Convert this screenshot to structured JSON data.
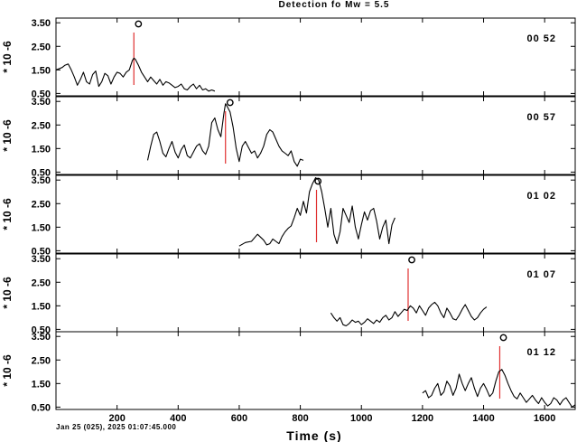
{
  "chart_data": {
    "type": "line",
    "title": "Detection fo Mw = 5.5",
    "xlabel": "Time (s)",
    "ylabel": "* 10 -6",
    "timestamp": "Jan 25 (025), 2025 01:07:45.000",
    "xlim": [
      0,
      1700
    ],
    "ylim": [
      0.4,
      3.7
    ],
    "xticks": [
      200,
      400,
      600,
      800,
      1000,
      1200,
      1400,
      1600
    ],
    "yticks": [
      "3.50",
      "2.50",
      "1.50",
      "0.50"
    ],
    "ytick_values": [
      3.5,
      2.5,
      1.5,
      0.5
    ],
    "colors": {
      "trace": "#000000",
      "detection_line": "#e03030",
      "frame": "#000000"
    },
    "panels": [
      {
        "label": "00 52",
        "detection_x": 255,
        "marker": {
          "x": 270,
          "y": 3.45
        },
        "series": {
          "x": [
            0,
            10,
            20,
            30,
            40,
            50,
            60,
            70,
            80,
            90,
            100,
            110,
            120,
            130,
            140,
            150,
            160,
            170,
            180,
            190,
            200,
            210,
            220,
            230,
            240,
            250,
            255,
            260,
            270,
            280,
            290,
            300,
            310,
            320,
            330,
            340,
            350,
            360,
            370,
            380,
            390,
            400,
            410,
            420,
            430,
            440,
            450,
            460,
            470,
            480,
            490,
            500,
            510,
            520
          ],
          "y": [
            1.5,
            1.55,
            1.6,
            1.7,
            1.75,
            1.5,
            1.2,
            0.85,
            1.1,
            1.4,
            1.0,
            0.9,
            1.3,
            1.45,
            0.8,
            1.0,
            1.35,
            1.25,
            0.9,
            1.2,
            1.4,
            1.35,
            1.2,
            1.4,
            1.5,
            1.9,
            2.0,
            1.95,
            1.7,
            1.4,
            1.2,
            1.0,
            1.2,
            1.05,
            0.9,
            1.1,
            0.85,
            1.0,
            0.95,
            0.85,
            0.75,
            0.8,
            0.9,
            0.7,
            0.65,
            0.8,
            0.9,
            0.7,
            0.85,
            0.65,
            0.7,
            0.6,
            0.65,
            0.6
          ]
        }
      },
      {
        "label": "00 57",
        "detection_x": 555,
        "marker": {
          "x": 570,
          "y": 3.45
        },
        "series": {
          "x": [
            300,
            310,
            320,
            330,
            340,
            350,
            360,
            370,
            380,
            390,
            400,
            410,
            420,
            430,
            440,
            450,
            460,
            470,
            480,
            490,
            500,
            510,
            520,
            530,
            540,
            550,
            555,
            560,
            570,
            580,
            590,
            600,
            610,
            620,
            630,
            640,
            650,
            660,
            670,
            680,
            690,
            700,
            710,
            720,
            730,
            740,
            750,
            760,
            770,
            780,
            790,
            800,
            810
          ],
          "y": [
            1.0,
            1.6,
            2.1,
            2.2,
            1.8,
            1.3,
            1.15,
            1.5,
            1.8,
            1.35,
            1.1,
            1.45,
            1.65,
            1.2,
            1.1,
            1.35,
            1.6,
            1.7,
            1.4,
            1.25,
            1.6,
            2.6,
            2.8,
            2.3,
            2.0,
            3.0,
            3.4,
            3.3,
            3.05,
            2.4,
            1.5,
            0.95,
            1.6,
            1.8,
            1.55,
            1.3,
            1.4,
            1.1,
            1.3,
            1.6,
            2.1,
            2.3,
            2.2,
            1.9,
            1.6,
            1.4,
            1.3,
            1.2,
            1.4,
            0.95,
            0.75,
            1.05,
            1.0
          ]
        }
      },
      {
        "label": "01 02",
        "detection_x": 853,
        "marker": {
          "x": 858,
          "y": 3.45
        },
        "series": {
          "x": [
            600,
            620,
            640,
            660,
            680,
            690,
            700,
            710,
            720,
            730,
            740,
            750,
            760,
            770,
            780,
            790,
            800,
            810,
            820,
            830,
            840,
            850,
            860,
            870,
            880,
            890,
            900,
            910,
            920,
            930,
            940,
            950,
            960,
            970,
            980,
            990,
            1000,
            1010,
            1020,
            1030,
            1040,
            1050,
            1060,
            1070,
            1080,
            1090,
            1100,
            1110
          ],
          "y": [
            0.7,
            0.85,
            0.9,
            1.2,
            0.95,
            0.75,
            0.8,
            1.0,
            0.9,
            0.8,
            1.1,
            1.3,
            1.45,
            1.55,
            1.9,
            2.3,
            2.0,
            2.6,
            2.1,
            3.0,
            3.35,
            3.6,
            3.5,
            3.0,
            2.3,
            1.5,
            2.3,
            1.2,
            0.8,
            1.3,
            2.3,
            2.0,
            1.7,
            2.4,
            1.5,
            1.0,
            1.6,
            2.15,
            1.8,
            2.2,
            2.3,
            1.75,
            1.0,
            1.5,
            1.8,
            0.8,
            1.6,
            1.9
          ]
        }
      },
      {
        "label": "01 07",
        "detection_x": 1153,
        "marker": {
          "x": 1165,
          "y": 3.45
        },
        "series": {
          "x": [
            900,
            910,
            920,
            930,
            940,
            950,
            960,
            970,
            980,
            990,
            1000,
            1010,
            1020,
            1030,
            1040,
            1050,
            1060,
            1070,
            1080,
            1090,
            1100,
            1110,
            1120,
            1130,
            1140,
            1150,
            1160,
            1170,
            1180,
            1190,
            1200,
            1210,
            1220,
            1230,
            1240,
            1250,
            1260,
            1270,
            1280,
            1290,
            1300,
            1310,
            1320,
            1330,
            1340,
            1350,
            1360,
            1370,
            1380,
            1390,
            1400,
            1410
          ],
          "y": [
            1.2,
            1.0,
            0.85,
            1.0,
            0.7,
            0.65,
            0.75,
            0.9,
            0.8,
            0.85,
            0.7,
            0.8,
            0.95,
            0.85,
            0.75,
            0.9,
            0.8,
            1.0,
            1.1,
            0.9,
            1.0,
            1.25,
            1.05,
            1.2,
            1.35,
            1.3,
            1.5,
            1.4,
            1.2,
            1.5,
            1.3,
            1.1,
            1.4,
            1.55,
            1.65,
            1.5,
            1.2,
            1.0,
            1.4,
            1.2,
            0.95,
            0.9,
            1.1,
            1.35,
            1.55,
            1.3,
            1.05,
            0.9,
            1.0,
            1.2,
            1.35,
            1.45
          ]
        }
      },
      {
        "label": "01 12",
        "detection_x": 1453,
        "marker": {
          "x": 1465,
          "y": 3.45
        },
        "series": {
          "x": [
            1200,
            1210,
            1220,
            1230,
            1240,
            1250,
            1260,
            1270,
            1280,
            1290,
            1300,
            1310,
            1320,
            1330,
            1340,
            1350,
            1360,
            1370,
            1380,
            1390,
            1400,
            1410,
            1420,
            1430,
            1440,
            1450,
            1460,
            1470,
            1480,
            1490,
            1500,
            1510,
            1520,
            1530,
            1540,
            1550,
            1560,
            1570,
            1580,
            1590,
            1600,
            1610,
            1620,
            1630,
            1640,
            1650,
            1660,
            1670,
            1680,
            1690,
            1700
          ],
          "y": [
            1.1,
            1.2,
            0.9,
            1.0,
            1.3,
            1.5,
            1.0,
            1.15,
            1.6,
            1.4,
            1.0,
            1.3,
            1.9,
            1.5,
            1.2,
            1.5,
            1.75,
            1.3,
            0.95,
            1.3,
            1.5,
            1.25,
            0.95,
            1.1,
            1.6,
            2.0,
            2.1,
            1.85,
            1.5,
            1.2,
            0.95,
            0.85,
            1.1,
            0.9,
            0.7,
            0.85,
            1.0,
            0.8,
            0.65,
            0.9,
            0.7,
            0.55,
            0.65,
            0.9,
            0.8,
            0.6,
            0.8,
            0.9,
            0.7,
            0.5,
            0.6
          ]
        }
      }
    ]
  }
}
